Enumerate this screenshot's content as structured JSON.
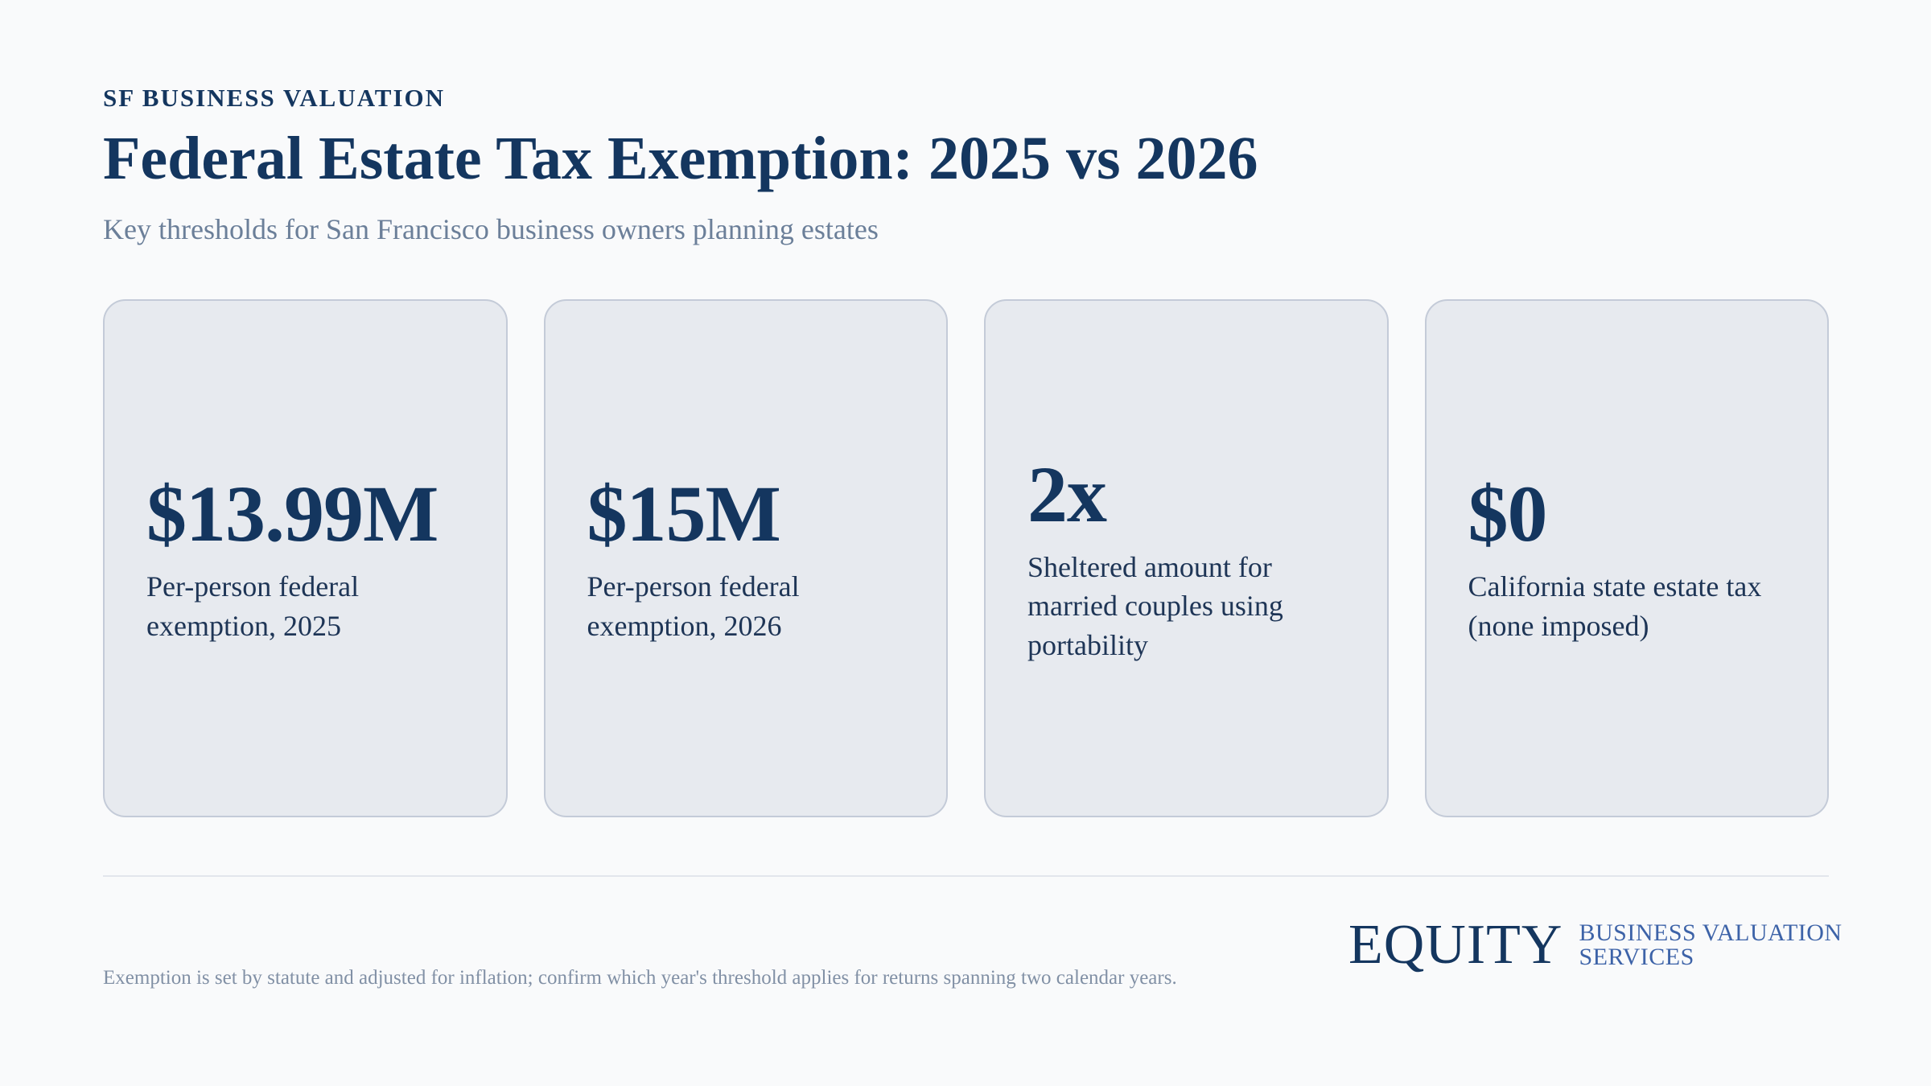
{
  "header": {
    "eyebrow": "SF BUSINESS VALUATION",
    "title": "Federal Estate Tax Exemption: 2025 vs 2026",
    "subtitle": "Key thresholds for San Francisco business owners planning estates"
  },
  "stats": [
    {
      "value": "$13.99M",
      "label": "Per-person federal exemption, 2025"
    },
    {
      "value": "$15M",
      "label": "Per-person federal exemption, 2026"
    },
    {
      "value": "2x",
      "label": "Sheltered amount for married couples using portability"
    },
    {
      "value": "$0",
      "label": "California state estate tax (none imposed)"
    }
  ],
  "footer": {
    "note": "Exemption is set by statute and adjusted for inflation; confirm which year's threshold applies for returns spanning two calendar years.",
    "logo": {
      "mark": "EQUITY",
      "line1": "BUSINESS VALUATION",
      "line2": "SERVICES"
    }
  },
  "colors": {
    "background": "#f9fafb",
    "navy": "#14365f",
    "card": "#e7eaef",
    "card_border": "#c4cbd8",
    "muted": "#6b7f99",
    "logo_blue": "#3d63a8"
  }
}
